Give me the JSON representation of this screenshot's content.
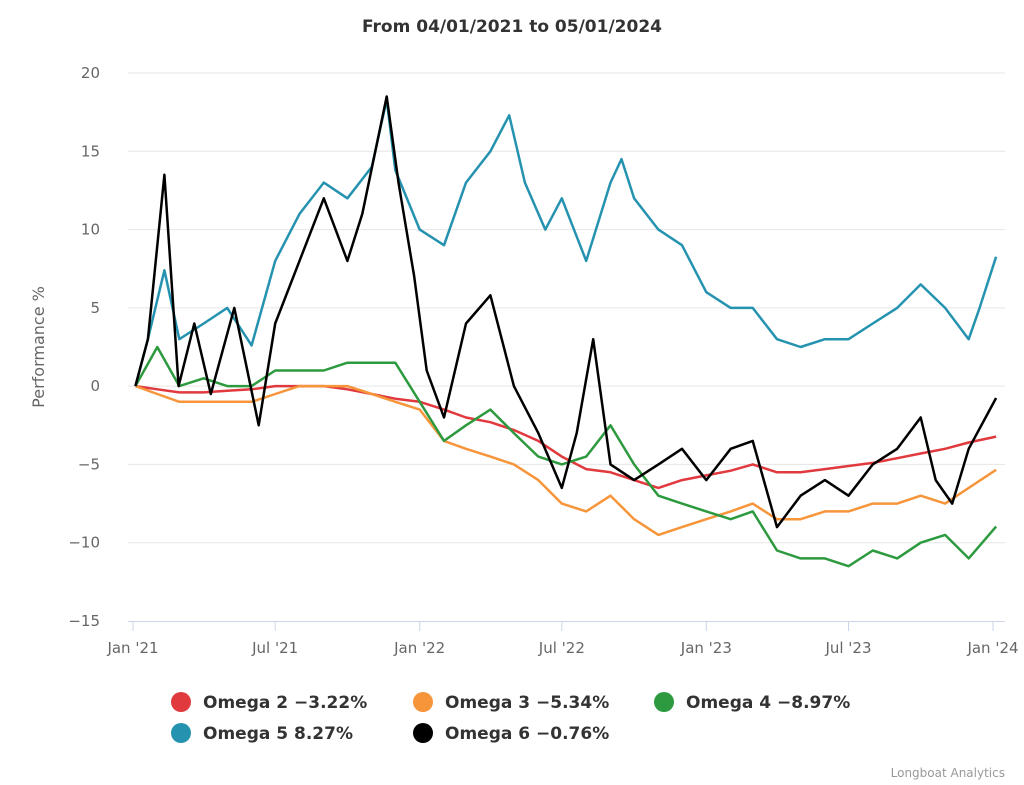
{
  "chart_data": {
    "type": "line",
    "title": "From 04/01/2021 to 05/01/2024",
    "xlabel": "",
    "ylabel": "Performance %",
    "ylim": [
      -15,
      20
    ],
    "yticks": [
      20,
      15,
      10,
      5,
      0,
      -5,
      -10,
      -15
    ],
    "ytick_labels": [
      "20",
      "15",
      "10",
      "5",
      "0",
      "−5",
      "−10",
      "−15"
    ],
    "xticks": [
      {
        "date": "2021-01-01",
        "label": "Jan '21"
      },
      {
        "date": "2021-07-01",
        "label": "Jul '21"
      },
      {
        "date": "2022-01-01",
        "label": "Jan '22"
      },
      {
        "date": "2022-07-01",
        "label": "Jul '22"
      },
      {
        "date": "2023-01-01",
        "label": "Jan '23"
      },
      {
        "date": "2023-07-01",
        "label": "Jul '23"
      },
      {
        "date": "2024-01-01",
        "label": "Jan '24"
      }
    ],
    "grid": true,
    "legend_position": "bottom",
    "series": [
      {
        "name": "Omega 2",
        "legend_label": "Omega 2 −3.22%",
        "color": "#e0393e",
        "points": [
          [
            "2021-01-04",
            0
          ],
          [
            "2021-02-01",
            -0.2
          ],
          [
            "2021-03-01",
            -0.4
          ],
          [
            "2021-04-01",
            -0.4
          ],
          [
            "2021-05-01",
            -0.3
          ],
          [
            "2021-06-01",
            -0.2
          ],
          [
            "2021-07-01",
            0
          ],
          [
            "2021-08-01",
            0
          ],
          [
            "2021-09-01",
            0
          ],
          [
            "2021-10-01",
            -0.2
          ],
          [
            "2021-11-01",
            -0.5
          ],
          [
            "2021-12-01",
            -0.8
          ],
          [
            "2022-01-01",
            -1
          ],
          [
            "2022-02-01",
            -1.5
          ],
          [
            "2022-03-01",
            -2
          ],
          [
            "2022-04-01",
            -2.3
          ],
          [
            "2022-05-01",
            -2.8
          ],
          [
            "2022-06-01",
            -3.5
          ],
          [
            "2022-07-01",
            -4.5
          ],
          [
            "2022-08-01",
            -5.3
          ],
          [
            "2022-09-01",
            -5.5
          ],
          [
            "2022-10-01",
            -6
          ],
          [
            "2022-11-01",
            -6.5
          ],
          [
            "2022-12-01",
            -6
          ],
          [
            "2023-01-01",
            -5.7
          ],
          [
            "2023-02-01",
            -5.4
          ],
          [
            "2023-03-01",
            -5
          ],
          [
            "2023-04-01",
            -5.5
          ],
          [
            "2023-05-01",
            -5.5
          ],
          [
            "2023-06-01",
            -5.3
          ],
          [
            "2023-07-01",
            -5.1
          ],
          [
            "2023-08-01",
            -4.9
          ],
          [
            "2023-09-01",
            -4.6
          ],
          [
            "2023-10-01",
            -4.3
          ],
          [
            "2023-11-01",
            -4
          ],
          [
            "2023-12-01",
            -3.6
          ],
          [
            "2024-01-05",
            -3.22
          ]
        ]
      },
      {
        "name": "Omega 3",
        "legend_label": "Omega 3 −5.34%",
        "color": "#f7953b",
        "points": [
          [
            "2021-01-04",
            0
          ],
          [
            "2021-02-01",
            -0.5
          ],
          [
            "2021-03-01",
            -1
          ],
          [
            "2021-04-01",
            -1
          ],
          [
            "2021-05-01",
            -1
          ],
          [
            "2021-06-01",
            -1
          ],
          [
            "2021-07-01",
            -0.5
          ],
          [
            "2021-08-01",
            0
          ],
          [
            "2021-09-01",
            0
          ],
          [
            "2021-10-01",
            0
          ],
          [
            "2021-11-01",
            -0.5
          ],
          [
            "2021-12-01",
            -1
          ],
          [
            "2022-01-01",
            -1.5
          ],
          [
            "2022-02-01",
            -3.5
          ],
          [
            "2022-03-01",
            -4
          ],
          [
            "2022-04-01",
            -4.5
          ],
          [
            "2022-05-01",
            -5
          ],
          [
            "2022-06-01",
            -6
          ],
          [
            "2022-07-01",
            -7.5
          ],
          [
            "2022-08-01",
            -8
          ],
          [
            "2022-09-01",
            -7
          ],
          [
            "2022-10-01",
            -8.5
          ],
          [
            "2022-11-01",
            -9.5
          ],
          [
            "2022-12-01",
            -9
          ],
          [
            "2023-01-01",
            -8.5
          ],
          [
            "2023-02-01",
            -8
          ],
          [
            "2023-03-01",
            -7.5
          ],
          [
            "2023-04-01",
            -8.5
          ],
          [
            "2023-05-01",
            -8.5
          ],
          [
            "2023-06-01",
            -8
          ],
          [
            "2023-07-01",
            -8
          ],
          [
            "2023-08-01",
            -7.5
          ],
          [
            "2023-09-01",
            -7.5
          ],
          [
            "2023-10-01",
            -7
          ],
          [
            "2023-11-01",
            -7.5
          ],
          [
            "2023-12-01",
            -6.5
          ],
          [
            "2024-01-05",
            -5.34
          ]
        ]
      },
      {
        "name": "Omega 4",
        "legend_label": "Omega 4 −8.97%",
        "color": "#2d9a3f",
        "points": [
          [
            "2021-01-04",
            0
          ],
          [
            "2021-02-01",
            2.5
          ],
          [
            "2021-03-01",
            0
          ],
          [
            "2021-04-01",
            0.5
          ],
          [
            "2021-05-01",
            0
          ],
          [
            "2021-06-01",
            0
          ],
          [
            "2021-07-01",
            1
          ],
          [
            "2021-08-01",
            1
          ],
          [
            "2021-09-01",
            1
          ],
          [
            "2021-10-01",
            1.5
          ],
          [
            "2021-11-01",
            1.5
          ],
          [
            "2021-12-01",
            1.5
          ],
          [
            "2022-01-01",
            -1
          ],
          [
            "2022-02-01",
            -3.5
          ],
          [
            "2022-03-01",
            -2.5
          ],
          [
            "2022-04-01",
            -1.5
          ],
          [
            "2022-05-01",
            -3
          ],
          [
            "2022-06-01",
            -4.5
          ],
          [
            "2022-07-01",
            -5
          ],
          [
            "2022-08-01",
            -4.5
          ],
          [
            "2022-09-01",
            -2.5
          ],
          [
            "2022-10-01",
            -5
          ],
          [
            "2022-11-01",
            -7
          ],
          [
            "2022-12-01",
            -7.5
          ],
          [
            "2023-01-01",
            -8
          ],
          [
            "2023-02-01",
            -8.5
          ],
          [
            "2023-03-01",
            -8
          ],
          [
            "2023-04-01",
            -10.5
          ],
          [
            "2023-05-01",
            -11
          ],
          [
            "2023-06-01",
            -11
          ],
          [
            "2023-07-01",
            -11.5
          ],
          [
            "2023-08-01",
            -10.5
          ],
          [
            "2023-09-01",
            -11
          ],
          [
            "2023-10-01",
            -10
          ],
          [
            "2023-11-01",
            -9.5
          ],
          [
            "2023-12-01",
            -11
          ],
          [
            "2024-01-05",
            -8.97
          ]
        ]
      },
      {
        "name": "Omega 5",
        "legend_label": "Omega 5 8.27%",
        "color": "#2593b0",
        "points": [
          [
            "2021-01-04",
            0
          ],
          [
            "2021-01-20",
            3
          ],
          [
            "2021-02-10",
            7.4
          ],
          [
            "2021-03-01",
            3
          ],
          [
            "2021-04-01",
            4
          ],
          [
            "2021-05-01",
            5
          ],
          [
            "2021-06-01",
            2.6
          ],
          [
            "2021-07-01",
            8
          ],
          [
            "2021-08-01",
            11
          ],
          [
            "2021-09-01",
            13
          ],
          [
            "2021-10-01",
            12
          ],
          [
            "2021-11-01",
            14
          ],
          [
            "2021-11-20",
            18.3
          ],
          [
            "2021-12-01",
            13.8
          ],
          [
            "2022-01-01",
            10
          ],
          [
            "2022-02-01",
            9
          ],
          [
            "2022-03-01",
            13
          ],
          [
            "2022-04-01",
            15
          ],
          [
            "2022-04-25",
            17.3
          ],
          [
            "2022-05-15",
            13
          ],
          [
            "2022-06-10",
            10
          ],
          [
            "2022-07-01",
            12
          ],
          [
            "2022-08-01",
            8
          ],
          [
            "2022-09-01",
            13
          ],
          [
            "2022-09-15",
            14.5
          ],
          [
            "2022-10-01",
            12
          ],
          [
            "2022-11-01",
            10
          ],
          [
            "2022-12-01",
            9
          ],
          [
            "2023-01-01",
            6
          ],
          [
            "2023-02-01",
            5
          ],
          [
            "2023-03-01",
            5
          ],
          [
            "2023-04-01",
            3
          ],
          [
            "2023-05-01",
            2.5
          ],
          [
            "2023-06-01",
            3
          ],
          [
            "2023-07-01",
            3
          ],
          [
            "2023-08-01",
            4
          ],
          [
            "2023-09-01",
            5
          ],
          [
            "2023-10-01",
            6.5
          ],
          [
            "2023-11-01",
            5
          ],
          [
            "2023-12-01",
            3
          ],
          [
            "2023-12-15",
            5
          ],
          [
            "2024-01-05",
            8.27
          ]
        ]
      },
      {
        "name": "Omega 6",
        "legend_label": "Omega 6 −0.76%",
        "color": "#000000",
        "points": [
          [
            "2021-01-04",
            0
          ],
          [
            "2021-01-20",
            3
          ],
          [
            "2021-02-10",
            13.5
          ],
          [
            "2021-02-28",
            0
          ],
          [
            "2021-03-20",
            4
          ],
          [
            "2021-04-10",
            -0.5
          ],
          [
            "2021-05-10",
            5
          ],
          [
            "2021-06-10",
            -2.5
          ],
          [
            "2021-07-01",
            4
          ],
          [
            "2021-08-01",
            8
          ],
          [
            "2021-09-01",
            12
          ],
          [
            "2021-10-01",
            8
          ],
          [
            "2021-10-20",
            11
          ],
          [
            "2021-11-20",
            18.5
          ],
          [
            "2021-12-05",
            13
          ],
          [
            "2021-12-25",
            7
          ],
          [
            "2022-01-10",
            1
          ],
          [
            "2022-02-01",
            -2
          ],
          [
            "2022-03-01",
            4
          ],
          [
            "2022-04-01",
            5.8
          ],
          [
            "2022-05-01",
            0
          ],
          [
            "2022-06-01",
            -3
          ],
          [
            "2022-07-01",
            -6.5
          ],
          [
            "2022-07-20",
            -3
          ],
          [
            "2022-08-10",
            3
          ],
          [
            "2022-09-01",
            -5
          ],
          [
            "2022-10-01",
            -6
          ],
          [
            "2022-11-01",
            -5
          ],
          [
            "2022-12-01",
            -4
          ],
          [
            "2023-01-01",
            -6
          ],
          [
            "2023-02-01",
            -4
          ],
          [
            "2023-03-01",
            -3.5
          ],
          [
            "2023-04-01",
            -9
          ],
          [
            "2023-05-01",
            -7
          ],
          [
            "2023-06-01",
            -6
          ],
          [
            "2023-07-01",
            -7
          ],
          [
            "2023-08-01",
            -5
          ],
          [
            "2023-09-01",
            -4
          ],
          [
            "2023-10-01",
            -2
          ],
          [
            "2023-10-20",
            -6
          ],
          [
            "2023-11-10",
            -7.5
          ],
          [
            "2023-12-01",
            -4
          ],
          [
            "2024-01-05",
            -0.76
          ]
        ]
      }
    ]
  },
  "credits": "Longboat Analytics"
}
